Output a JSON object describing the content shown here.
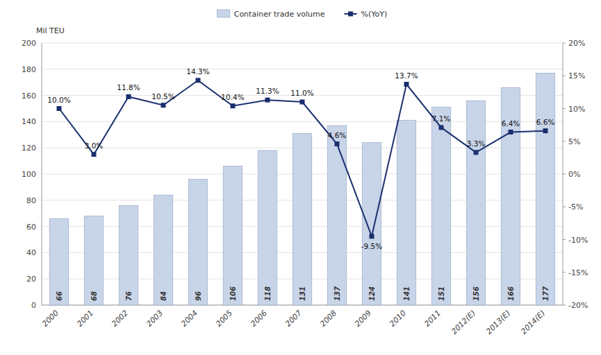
{
  "chart_data": {
    "type": "bar",
    "y_label": "Mil TEU",
    "categories": [
      "2000",
      "2001",
      "2002",
      "2003",
      "2004",
      "2005",
      "2006",
      "2007",
      "2008",
      "2009",
      "2010",
      "2011",
      "2012(E)",
      "2013(E)",
      "2014(E)"
    ],
    "series": [
      {
        "name": "Container trade volume",
        "type": "bar",
        "color": "#c8d4e8",
        "values": [
          66,
          68,
          76,
          84,
          96,
          106,
          118,
          131,
          137,
          124,
          141,
          151,
          156,
          166,
          177
        ]
      },
      {
        "name": "%(YoY)",
        "type": "line",
        "axis": "y2",
        "color": "#1a2f6e",
        "marker": "square",
        "values": [
          10.0,
          3.0,
          11.8,
          10.5,
          14.3,
          10.4,
          11.3,
          11.0,
          4.6,
          -9.5,
          13.7,
          7.1,
          3.3,
          6.4,
          6.6
        ],
        "value_labels": [
          "10.0%",
          "3.0%",
          "11.8%",
          "10.5%",
          "14.3%",
          "10.4%",
          "11.3%",
          "11.0%",
          "4.6%",
          "-9.5%",
          "13.7%",
          "7.1%",
          "3.3%",
          "6.4%",
          "6.6%"
        ]
      }
    ],
    "ylim": [
      0,
      200
    ],
    "yticks": [
      0,
      20,
      40,
      60,
      80,
      100,
      120,
      140,
      160,
      180,
      200
    ],
    "y2lim": [
      -20,
      20
    ],
    "y2ticks": [
      {
        "value": -20,
        "label": "-20%"
      },
      {
        "value": -15,
        "label": "-15%"
      },
      {
        "value": -10,
        "label": "-10%"
      },
      {
        "value": -5,
        "label": "-5%"
      },
      {
        "value": 0,
        "label": "0%"
      },
      {
        "value": 5,
        "label": "5%"
      },
      {
        "value": 10,
        "label": "10%"
      },
      {
        "value": 15,
        "label": "15%"
      },
      {
        "value": 20,
        "label": "20%"
      }
    ],
    "grid": true,
    "legend": "top",
    "data_labels": true
  }
}
